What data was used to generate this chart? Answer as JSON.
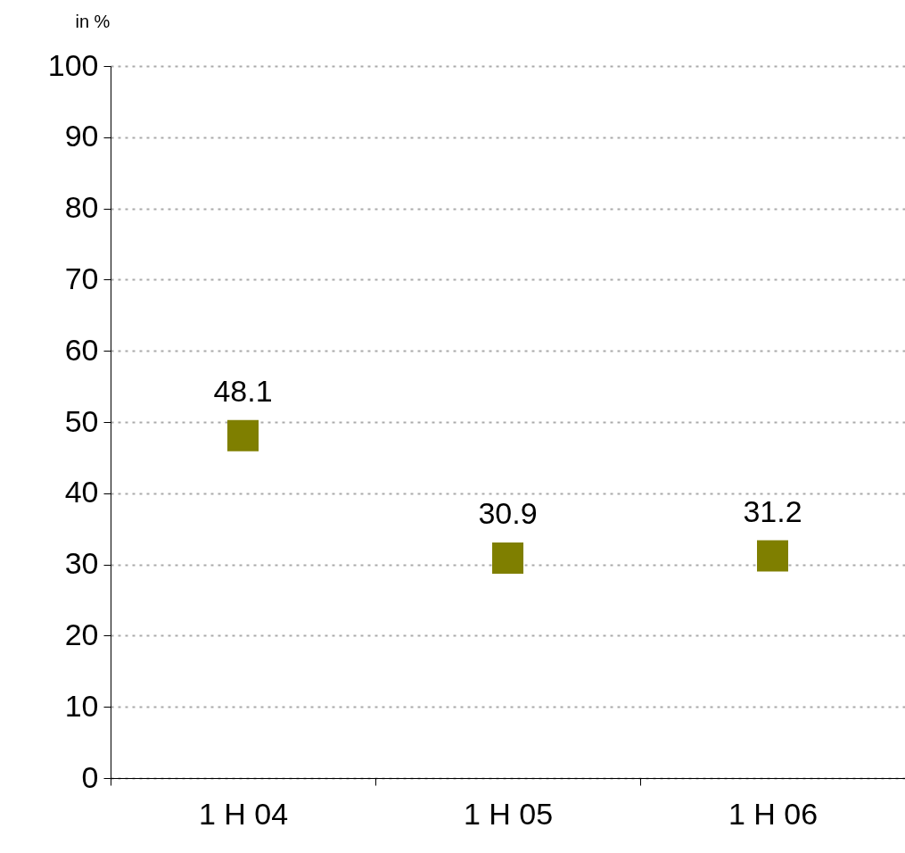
{
  "chart_data": {
    "type": "scatter",
    "ylabel": "in %",
    "categories": [
      "1 H 04",
      "1 H 05",
      "1 H 06"
    ],
    "series": [
      {
        "color": "#7f7f00",
        "values": [
          48.1,
          30.9,
          31.2
        ]
      }
    ],
    "ylim": [
      0,
      100
    ],
    "yticks": [
      0,
      10,
      20,
      30,
      40,
      50,
      60,
      70,
      80,
      90,
      100
    ],
    "grid": "y",
    "marker": "square",
    "data_labels": true
  }
}
